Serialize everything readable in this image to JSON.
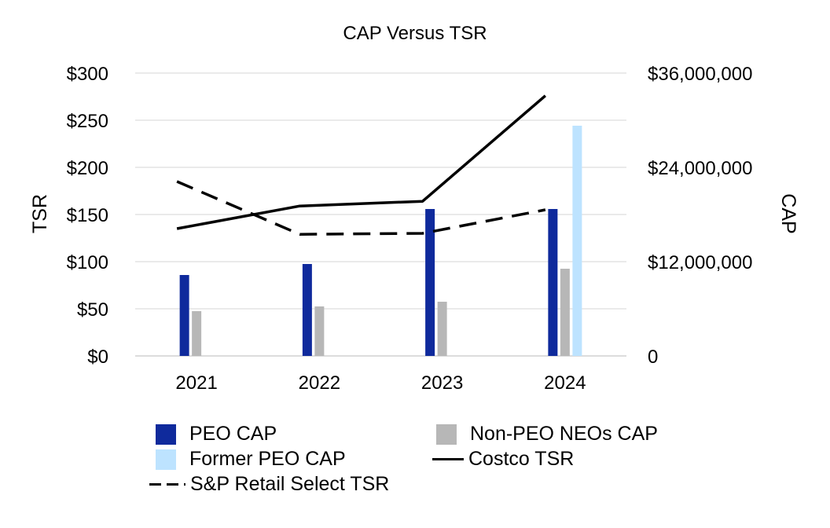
{
  "chart_data": {
    "type": "bar",
    "title": "CAP Versus TSR",
    "categories": [
      "2021",
      "2022",
      "2023",
      "2024"
    ],
    "ylabel_left": "TSR",
    "ylabel_right": "CAP",
    "ylim_left": [
      0,
      300
    ],
    "ylim_right": [
      0,
      36000000
    ],
    "yticks_left": [
      "$0",
      "$50",
      "$100",
      "$150",
      "$200",
      "$250",
      "$300"
    ],
    "yticks_right": [
      "0",
      "$12,000,000",
      "$24,000,000",
      "$36,000,000"
    ],
    "grid": true,
    "legend_position": "bottom",
    "bar_series": [
      {
        "name": "PEO CAP",
        "color": "#0f2a9c",
        "values": [
          10300000,
          11700000,
          18700000,
          18700000
        ]
      },
      {
        "name": "Non-PEO NEOs CAP",
        "color": "#b7b7b7",
        "values": [
          5700000,
          6300000,
          6900000,
          11100000
        ]
      },
      {
        "name": "Former PEO CAP",
        "color": "#bde3ff",
        "values": [
          null,
          null,
          null,
          29300000
        ]
      }
    ],
    "line_series": [
      {
        "name": "Costco TSR",
        "color": "#000000",
        "style": "solid",
        "values": [
          135,
          159,
          164,
          276
        ]
      },
      {
        "name": "S&P Retail Select TSR",
        "color": "#000000",
        "style": "dashed",
        "values": [
          185,
          129,
          130,
          155
        ]
      }
    ]
  }
}
